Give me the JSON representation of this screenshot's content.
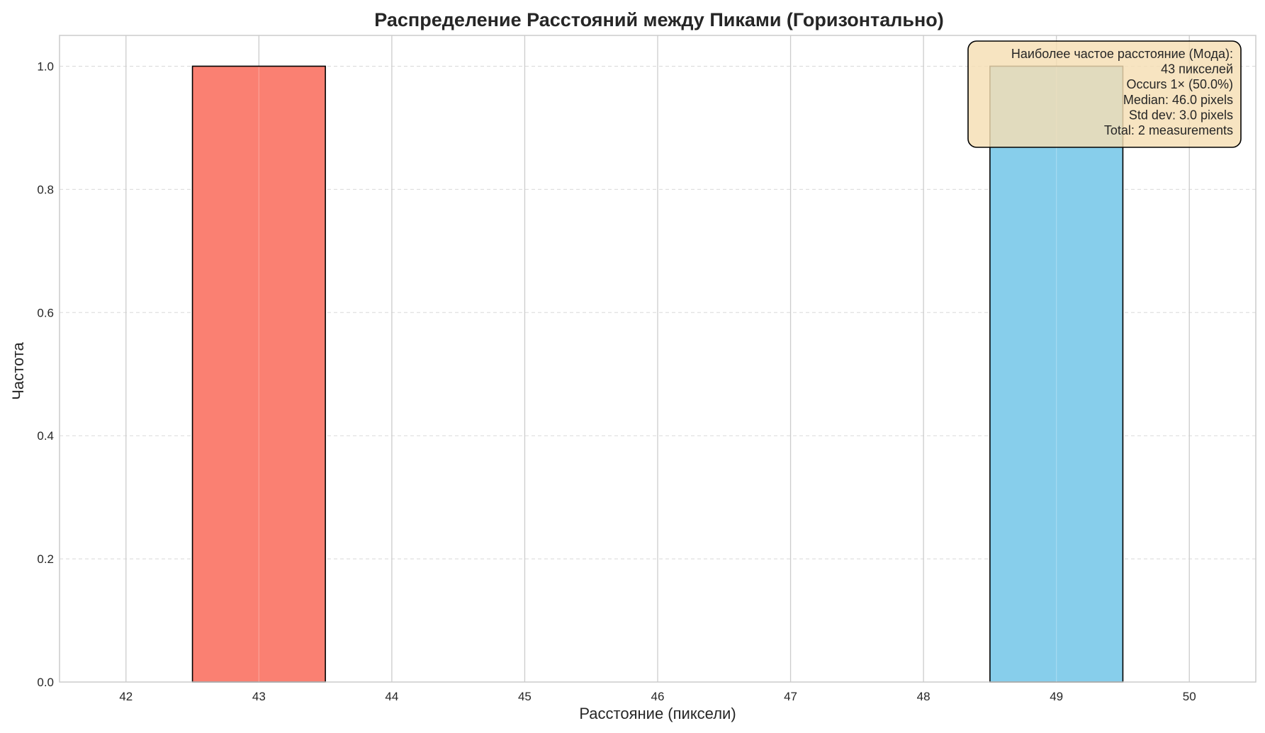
{
  "chart_data": {
    "type": "bar",
    "title": "Распределение Расстояний между Пиками (Горизонтально)",
    "xlabel": "Расстояние (пиксели)",
    "ylabel": "Частота",
    "xlim": [
      41.5,
      50.5
    ],
    "ylim": [
      0,
      1.05
    ],
    "x_ticks": [
      42,
      43,
      44,
      45,
      46,
      47,
      48,
      49,
      50
    ],
    "y_ticks": [
      0.0,
      0.2,
      0.4,
      0.6,
      0.8,
      1.0
    ],
    "grid": true,
    "bars": [
      {
        "x": 43,
        "width": 1,
        "value": 1,
        "color": "#fa8072"
      },
      {
        "x": 49,
        "width": 1,
        "value": 1,
        "color": "#87ceeb"
      }
    ],
    "annotation": {
      "placement": "top-right",
      "lines": [
        "Наиболее частое расстояние (Мода):",
        "43 пикселей",
        "Occurs 1× (50.0%)",
        "Median: 46.0 pixels",
        "Std dev: 3.0 pixels",
        "Total: 2 measurements"
      ]
    }
  }
}
